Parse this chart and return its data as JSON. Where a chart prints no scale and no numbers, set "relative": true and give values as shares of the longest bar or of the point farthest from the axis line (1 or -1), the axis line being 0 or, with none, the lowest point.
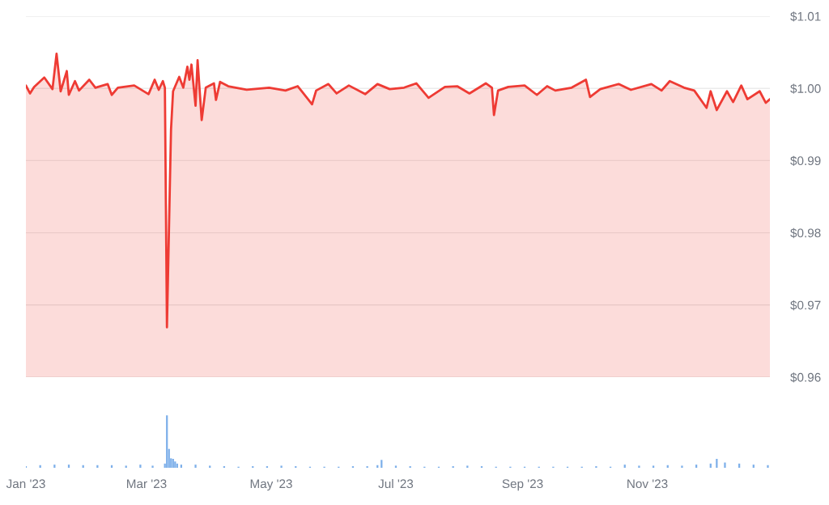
{
  "chart_data": [
    {
      "type": "area",
      "xlim": [
        "2023-01-01",
        "2023-12-31"
      ],
      "ylim": [
        0.96,
        1.01
      ],
      "yticks": [
        {
          "value": 0.96,
          "label": "$0.96"
        },
        {
          "value": 0.97,
          "label": "$0.97"
        },
        {
          "value": 0.98,
          "label": "$0.98"
        },
        {
          "value": 0.99,
          "label": "$0.99"
        },
        {
          "value": 1.0,
          "label": "$1.00"
        },
        {
          "value": 1.01,
          "label": "$1.01"
        }
      ],
      "tick_labels": "y",
      "grid": "y",
      "x": [
        "2023-01-01",
        "2023-01-03",
        "2023-01-05",
        "2023-01-10",
        "2023-01-14",
        "2023-01-16",
        "2023-01-18",
        "2023-01-21",
        "2023-01-22",
        "2023-01-25",
        "2023-01-27",
        "2023-02-01",
        "2023-02-04",
        "2023-02-10",
        "2023-02-12",
        "2023-02-15",
        "2023-02-23",
        "2023-03-02",
        "2023-03-05",
        "2023-03-07",
        "2023-03-09",
        "2023-03-10",
        "2023-03-11",
        "2023-03-13",
        "2023-03-14",
        "2023-03-17",
        "2023-03-19",
        "2023-03-21",
        "2023-03-22",
        "2023-03-23",
        "2023-03-25",
        "2023-03-26",
        "2023-03-28",
        "2023-03-30",
        "2023-04-03",
        "2023-04-04",
        "2023-04-06",
        "2023-04-10",
        "2023-04-19",
        "2023-04-30",
        "2023-05-08",
        "2023-05-14",
        "2023-05-16",
        "2023-05-21",
        "2023-05-23",
        "2023-05-29",
        "2023-06-02",
        "2023-06-08",
        "2023-06-16",
        "2023-06-22",
        "2023-06-28",
        "2023-07-05",
        "2023-07-11",
        "2023-07-17",
        "2023-07-25",
        "2023-07-31",
        "2023-08-06",
        "2023-08-14",
        "2023-08-17",
        "2023-08-18",
        "2023-08-20",
        "2023-08-25",
        "2023-09-02",
        "2023-09-08",
        "2023-09-13",
        "2023-09-17",
        "2023-09-25",
        "2023-10-02",
        "2023-10-04",
        "2023-10-09",
        "2023-10-18",
        "2023-10-24",
        "2023-11-03",
        "2023-11-08",
        "2023-11-12",
        "2023-11-19",
        "2023-11-24",
        "2023-11-30",
        "2023-12-02",
        "2023-12-05",
        "2023-12-10",
        "2023-12-13",
        "2023-12-17",
        "2023-12-20",
        "2023-12-26",
        "2023-12-29",
        "2023-12-31"
      ],
      "series": [
        {
          "color": "#ee3b34",
          "values": [
            1.0004,
            0.9993,
            1.0002,
            1.0015,
            0.9999,
            1.0048,
            0.9996,
            1.0024,
            0.9991,
            1.001,
            0.9997,
            1.0012,
            1.0001,
            1.0006,
            0.9991,
            1.0001,
            1.0004,
            0.9992,
            1.0012,
            0.9998,
            1.001,
            1.0001,
            0.9669,
            0.9943,
            0.9996,
            1.0016,
            1.0001,
            1.003,
            1.0012,
            1.0033,
            0.9976,
            1.0039,
            0.9956,
            1.0001,
            1.0007,
            0.9984,
            1.0009,
            1.0003,
            0.9998,
            1.0001,
            0.9997,
            1.0003,
            0.9996,
            0.9978,
            0.9997,
            1.0006,
            0.9993,
            1.0004,
            0.9992,
            1.0006,
            0.9999,
            1.0001,
            1.0007,
            0.9987,
            1.0002,
            1.0003,
            0.9993,
            1.0007,
            1.0001,
            0.9963,
            0.9997,
            1.0002,
            1.0004,
            0.9991,
            1.0003,
            0.9997,
            1.0001,
            1.0012,
            0.9988,
            0.9999,
            1.0006,
            0.9998,
            1.0006,
            0.9997,
            1.001,
            1.0001,
            0.9997,
            0.9973,
            0.9996,
            0.997,
            0.9996,
            0.9981,
            1.0004,
            0.9985,
            0.9996,
            0.998,
            0.9985
          ]
        }
      ]
    },
    {
      "type": "bar",
      "relative": true,
      "color": "#7eb0ea",
      "xlim": [
        "2023-01-01",
        "2023-12-31"
      ],
      "tick_labels": "x",
      "xticks": [
        {
          "value": "2023-01-01",
          "label": "Jan '23"
        },
        {
          "value": "2023-03-01",
          "label": "Mar '23"
        },
        {
          "value": "2023-05-01",
          "label": "May '23"
        },
        {
          "value": "2023-07-01",
          "label": "Jul '23"
        },
        {
          "value": "2023-09-01",
          "label": "Sep '23"
        },
        {
          "value": "2023-11-01",
          "label": "Nov '23"
        }
      ],
      "x": [
        "2023-01-01",
        "2023-01-08",
        "2023-01-15",
        "2023-01-22",
        "2023-01-29",
        "2023-02-05",
        "2023-02-12",
        "2023-02-19",
        "2023-02-26",
        "2023-03-04",
        "2023-03-10",
        "2023-03-11",
        "2023-03-12",
        "2023-03-13",
        "2023-03-14",
        "2023-03-15",
        "2023-03-16",
        "2023-03-18",
        "2023-03-25",
        "2023-04-01",
        "2023-04-08",
        "2023-04-15",
        "2023-04-22",
        "2023-04-29",
        "2023-05-06",
        "2023-05-13",
        "2023-05-20",
        "2023-05-27",
        "2023-06-03",
        "2023-06-10",
        "2023-06-17",
        "2023-06-22",
        "2023-06-24",
        "2023-07-01",
        "2023-07-08",
        "2023-07-15",
        "2023-07-22",
        "2023-07-29",
        "2023-08-05",
        "2023-08-12",
        "2023-08-19",
        "2023-08-26",
        "2023-09-02",
        "2023-09-09",
        "2023-09-16",
        "2023-09-23",
        "2023-09-30",
        "2023-10-07",
        "2023-10-14",
        "2023-10-21",
        "2023-10-28",
        "2023-11-04",
        "2023-11-11",
        "2023-11-18",
        "2023-11-25",
        "2023-12-02",
        "2023-12-05",
        "2023-12-09",
        "2023-12-16",
        "2023-12-23",
        "2023-12-30"
      ],
      "values": [
        0.03,
        0.05,
        0.06,
        0.06,
        0.05,
        0.05,
        0.05,
        0.04,
        0.06,
        0.04,
        0.08,
        1,
        0.36,
        0.18,
        0.17,
        0.12,
        0.08,
        0.06,
        0.06,
        0.04,
        0.03,
        0.02,
        0.03,
        0.03,
        0.04,
        0.03,
        0.02,
        0.02,
        0.02,
        0.03,
        0.03,
        0.05,
        0.15,
        0.04,
        0.03,
        0.02,
        0.02,
        0.03,
        0.04,
        0.03,
        0.02,
        0.02,
        0.02,
        0.02,
        0.02,
        0.02,
        0.02,
        0.03,
        0.02,
        0.06,
        0.04,
        0.04,
        0.05,
        0.04,
        0.06,
        0.08,
        0.17,
        0.1,
        0.08,
        0.06,
        0.05
      ]
    }
  ]
}
